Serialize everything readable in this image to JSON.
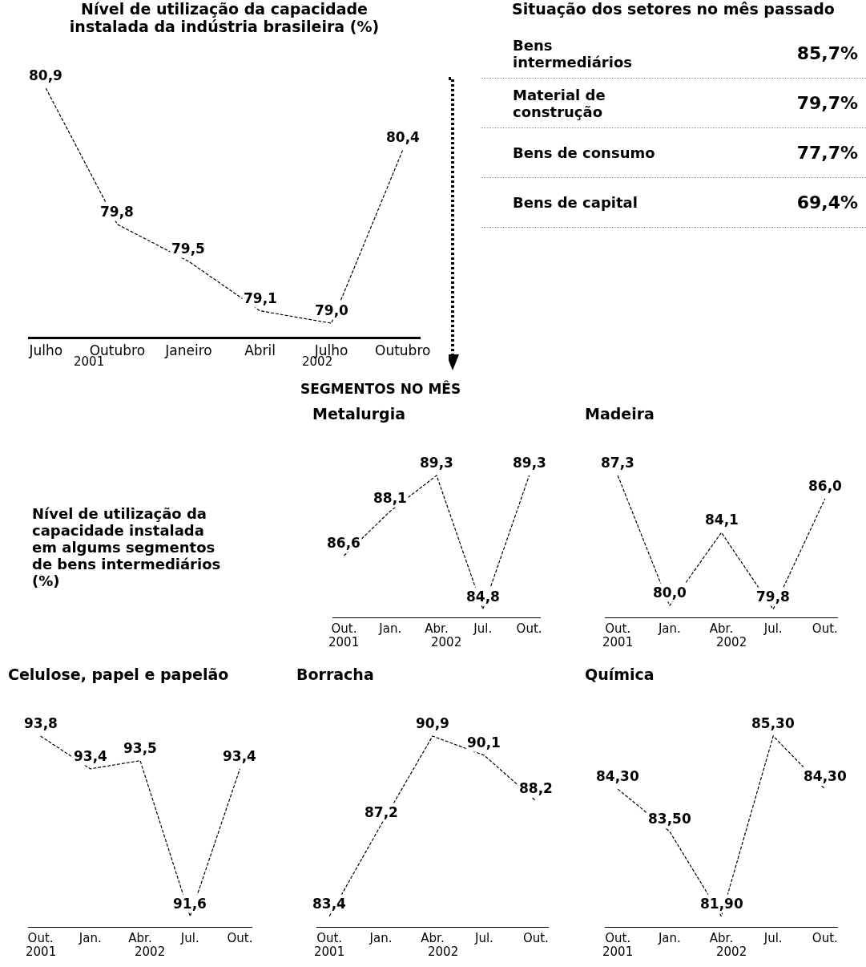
{
  "chart_data": [
    {
      "type": "line",
      "title": "Nível de utilização da capacidade instalada da indústria brasileira (%)",
      "categories": [
        "Julho",
        "Outubro",
        "Janeiro",
        "Abril",
        "Julho",
        "Outubro"
      ],
      "values": [
        80.9,
        79.8,
        79.5,
        79.1,
        79.0,
        80.4
      ],
      "value_labels": [
        "80,9",
        "79,8",
        "79,5",
        "79,1",
        "79,0",
        "80,4"
      ],
      "color": "#000000",
      "line_style": "dashed",
      "marker": "none",
      "tick_labels": "x",
      "annotations": [
        "2001",
        "2002"
      ]
    },
    {
      "type": "other",
      "title": "Situação dos setores no mês passado",
      "categories": [
        "Bens intermediários",
        "Material de construção",
        "Bens de consumo",
        "Bens de capital"
      ],
      "values": [
        85.7,
        79.7,
        77.7,
        69.4
      ],
      "value_labels": [
        "85,7%",
        "79,7%",
        "77,7%",
        "69,4%"
      ]
    },
    {
      "type": "other",
      "title": "SEGMENTOS NO MÊS",
      "subtitle": "Nível de utilização da capacidade instalada em algums segmentos de bens intermediários (%)"
    },
    {
      "type": "line",
      "title": "Metalurgia",
      "categories": [
        "Out.",
        "Jan.",
        "Abr.",
        "Jul.",
        "Out."
      ],
      "values": [
        86.6,
        88.1,
        89.3,
        84.8,
        89.3
      ],
      "value_labels": [
        "86,6",
        "88,1",
        "89,3",
        "84,8",
        "89,3"
      ],
      "color": "#000000",
      "line_style": "dashed",
      "marker": "none",
      "tick_labels": "x",
      "annotations": [
        "2001",
        "2002"
      ]
    },
    {
      "type": "line",
      "title": "Madeira",
      "categories": [
        "Out.",
        "Jan.",
        "Abr.",
        "Jul.",
        "Out."
      ],
      "values": [
        87.3,
        80.0,
        84.1,
        79.8,
        86.0
      ],
      "value_labels": [
        "87,3",
        "80,0",
        "84,1",
        "79,8",
        "86,0"
      ],
      "color": "#000000",
      "line_style": "dashed",
      "marker": "none",
      "tick_labels": "x",
      "annotations": [
        "2001",
        "2002"
      ]
    },
    {
      "type": "line",
      "title": "Celulose, papel e papelão",
      "categories": [
        "Out.",
        "Jan.",
        "Abr.",
        "Jul.",
        "Out."
      ],
      "values": [
        93.8,
        93.4,
        93.5,
        91.6,
        93.4
      ],
      "value_labels": [
        "93,8",
        "93,4",
        "93,5",
        "91,6",
        "93,4"
      ],
      "color": "#000000",
      "line_style": "dashed",
      "marker": "none",
      "tick_labels": "x",
      "annotations": [
        "2001",
        "2002"
      ]
    },
    {
      "type": "line",
      "title": "Borracha",
      "categories": [
        "Out.",
        "Jan.",
        "Abr.",
        "Jul.",
        "Out."
      ],
      "values": [
        83.4,
        87.2,
        90.9,
        90.1,
        88.2
      ],
      "value_labels": [
        "83,4",
        "87,2",
        "90,9",
        "90,1",
        "88,2"
      ],
      "color": "#000000",
      "line_style": "dashed",
      "marker": "none",
      "tick_labels": "x",
      "annotations": [
        "2001",
        "2002"
      ]
    },
    {
      "type": "line",
      "title": "Química",
      "categories": [
        "Out.",
        "Jan.",
        "Abr.",
        "Jul.",
        "Out."
      ],
      "values": [
        84.3,
        83.5,
        81.9,
        85.3,
        84.3
      ],
      "value_labels": [
        "84,30",
        "83,50",
        "81,90",
        "85,30",
        "84,30"
      ],
      "color": "#000000",
      "line_style": "dashed",
      "marker": "none",
      "tick_labels": "x",
      "annotations": [
        "2001",
        "2002"
      ]
    }
  ]
}
